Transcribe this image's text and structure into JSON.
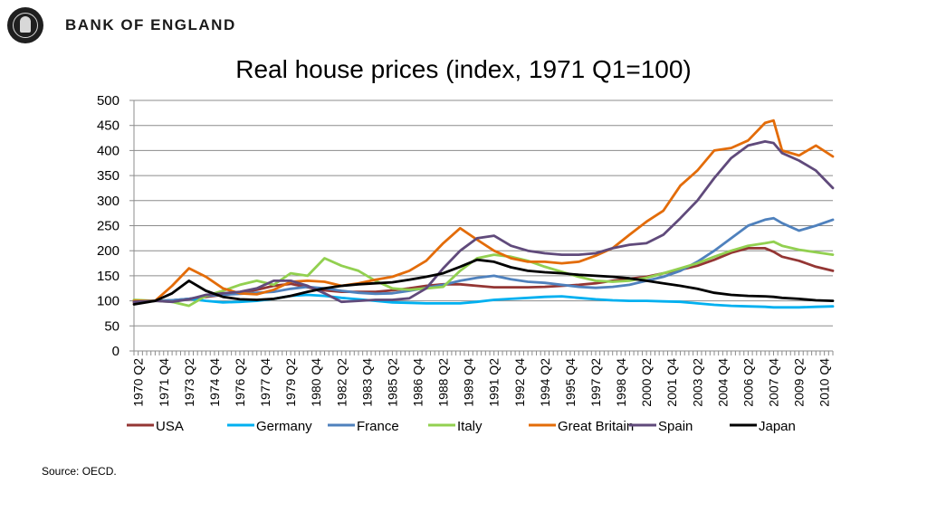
{
  "header": {
    "org_name": "BANK OF ENGLAND"
  },
  "footer": {
    "source": "Source: OECD."
  },
  "chart_data": {
    "type": "line",
    "title": "Real house prices (index, 1971 Q1=100)",
    "xlabel": "",
    "ylabel": "",
    "ylim": [
      0,
      500
    ],
    "yticks": [
      0,
      50,
      100,
      150,
      200,
      250,
      300,
      350,
      400,
      450,
      500
    ],
    "grid": "horizontal",
    "legend": "bottom",
    "x_tick_labels": [
      "1970 Q2",
      "1971 Q4",
      "1973 Q2",
      "1974 Q4",
      "1976 Q2",
      "1977 Q4",
      "1979 Q2",
      "1980 Q4",
      "1982 Q2",
      "1983 Q4",
      "1985 Q2",
      "1986 Q4",
      "1988 Q2",
      "1989 Q4",
      "1991 Q2",
      "1992 Q4",
      "1994 Q2",
      "1995 Q4",
      "1997 Q2",
      "1998 Q4",
      "2000 Q2",
      "2001 Q4",
      "2003 Q2",
      "2004 Q4",
      "2006 Q2",
      "2007 Q4",
      "2009 Q2",
      "2010 Q4"
    ],
    "x": [
      "1970 Q1",
      "1971 Q2",
      "1972 Q2",
      "1973 Q2",
      "1974 Q2",
      "1975 Q2",
      "1976 Q2",
      "1977 Q2",
      "1978 Q2",
      "1979 Q2",
      "1980 Q2",
      "1981 Q2",
      "1982 Q2",
      "1983 Q2",
      "1984 Q2",
      "1985 Q2",
      "1986 Q2",
      "1987 Q2",
      "1988 Q2",
      "1989 Q2",
      "1990 Q2",
      "1991 Q2",
      "1992 Q2",
      "1993 Q2",
      "1994 Q2",
      "1995 Q2",
      "1996 Q2",
      "1997 Q2",
      "1998 Q2",
      "1999 Q2",
      "2000 Q2",
      "2001 Q2",
      "2002 Q2",
      "2003 Q2",
      "2004 Q2",
      "2005 Q2",
      "2006 Q2",
      "2007 Q2",
      "2007 Q4",
      "2008 Q2",
      "2009 Q2",
      "2010 Q2",
      "2011 Q2"
    ],
    "series": [
      {
        "name": "USA",
        "color": "#943634",
        "values": [
          96,
          100,
          101,
          104,
          108,
          112,
          116,
          122,
          130,
          134,
          127,
          121,
          118,
          118,
          118,
          121,
          125,
          130,
          133,
          133,
          130,
          127,
          127,
          127,
          128,
          130,
          132,
          135,
          140,
          144,
          148,
          155,
          162,
          170,
          182,
          196,
          205,
          205,
          198,
          188,
          180,
          168,
          160
        ]
      },
      {
        "name": "Germany",
        "color": "#00b0f0",
        "values": [
          100,
          100,
          101,
          104,
          100,
          97,
          98,
          100,
          104,
          110,
          112,
          110,
          106,
          103,
          100,
          97,
          96,
          95,
          95,
          95,
          98,
          102,
          104,
          106,
          108,
          109,
          106,
          103,
          101,
          100,
          100,
          99,
          98,
          95,
          92,
          90,
          89,
          88,
          87,
          87,
          87,
          88,
          89
        ]
      },
      {
        "name": "France",
        "color": "#4f81bd",
        "values": [
          100,
          100,
          101,
          104,
          110,
          112,
          114,
          116,
          118,
          124,
          128,
          125,
          120,
          116,
          114,
          115,
          120,
          126,
          132,
          140,
          146,
          150,
          143,
          138,
          136,
          132,
          128,
          126,
          128,
          132,
          140,
          148,
          160,
          178,
          200,
          225,
          250,
          262,
          265,
          255,
          240,
          250,
          262
        ]
      },
      {
        "name": "Italy",
        "color": "#92d050",
        "values": [
          102,
          100,
          98,
          90,
          110,
          120,
          132,
          140,
          132,
          155,
          150,
          185,
          170,
          160,
          140,
          125,
          122,
          125,
          128,
          160,
          185,
          192,
          188,
          180,
          168,
          158,
          148,
          140,
          138,
          140,
          146,
          155,
          165,
          175,
          188,
          200,
          210,
          215,
          218,
          210,
          202,
          197,
          192
        ]
      },
      {
        "name": "Great Britain",
        "color": "#e36c09",
        "values": [
          100,
          100,
          130,
          165,
          148,
          125,
          115,
          113,
          122,
          138,
          140,
          138,
          130,
          135,
          142,
          148,
          160,
          180,
          215,
          245,
          222,
          200,
          185,
          178,
          178,
          175,
          178,
          190,
          205,
          232,
          258,
          280,
          330,
          360,
          400,
          405,
          420,
          455,
          460,
          400,
          390,
          410,
          388
        ]
      },
      {
        "name": "Spain",
        "color": "#604a7b",
        "values": [
          98,
          100,
          98,
          103,
          112,
          115,
          118,
          125,
          140,
          140,
          130,
          115,
          98,
          100,
          102,
          102,
          105,
          125,
          165,
          200,
          225,
          230,
          210,
          200,
          195,
          192,
          192,
          195,
          205,
          212,
          215,
          232,
          265,
          300,
          345,
          385,
          410,
          418,
          415,
          395,
          380,
          360,
          325
        ]
      },
      {
        "name": "Japan",
        "color": "#000000",
        "values": [
          93,
          100,
          115,
          140,
          120,
          108,
          103,
          102,
          104,
          110,
          118,
          125,
          130,
          133,
          135,
          137,
          142,
          148,
          155,
          168,
          182,
          178,
          167,
          160,
          157,
          155,
          152,
          150,
          148,
          145,
          140,
          135,
          130,
          124,
          116,
          112,
          110,
          109,
          108,
          106,
          104,
          101,
          100
        ]
      }
    ]
  }
}
